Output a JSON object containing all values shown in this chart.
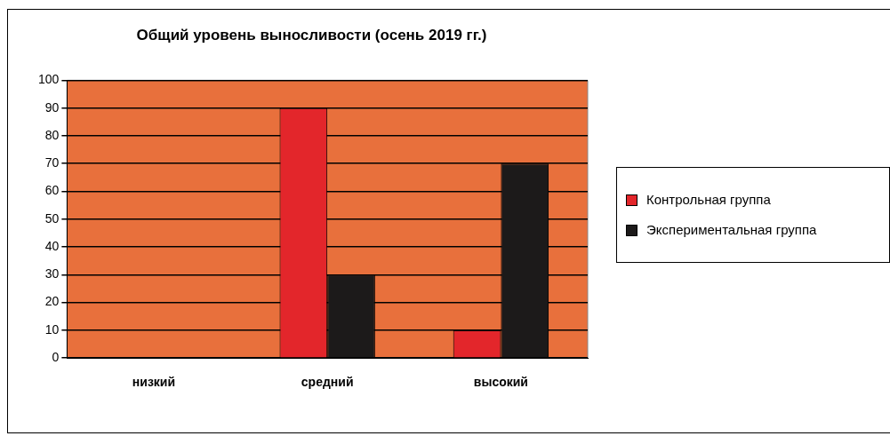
{
  "chart_data": {
    "type": "bar",
    "title": "Общий уровень выносливости (осень 2019 гг.)",
    "categories": [
      "низкий",
      "средний",
      "высокий"
    ],
    "series": [
      {
        "name": "Контрольная группа",
        "color": "#e3262b",
        "values": [
          0,
          90,
          10
        ]
      },
      {
        "name": "Экспериментальная группа",
        "color": "#1c1a1a",
        "values": [
          0,
          30,
          70
        ]
      }
    ],
    "ylim": [
      0,
      100
    ],
    "yticks": [
      0,
      10,
      20,
      30,
      40,
      50,
      60,
      70,
      80,
      90,
      100
    ],
    "grid": "y",
    "legend": "right"
  }
}
